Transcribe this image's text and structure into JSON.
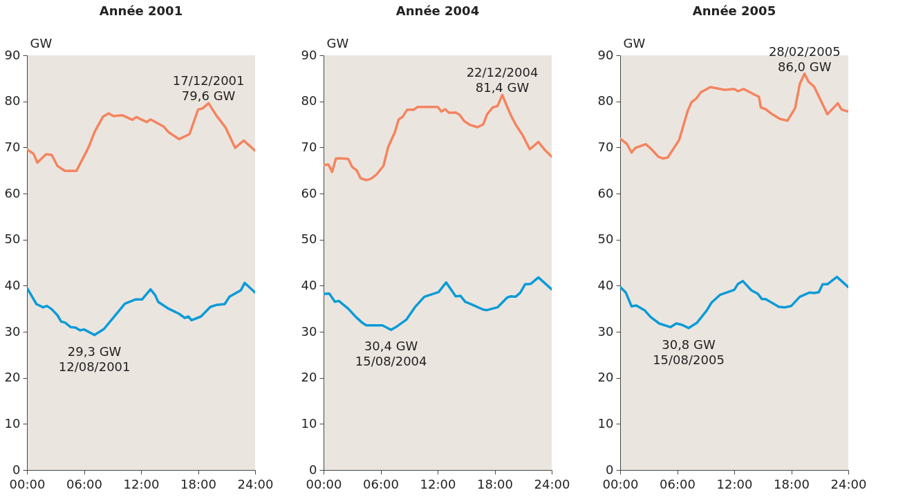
{
  "chart_data": [
    {
      "type": "line",
      "title": "Année 2001",
      "ylabel": "GW",
      "xlim": [
        0,
        24
      ],
      "ylim": [
        0,
        90
      ],
      "yticks": [
        0,
        10,
        20,
        30,
        40,
        50,
        60,
        70,
        80,
        90
      ],
      "xticks": [
        {
          "value": 0,
          "label": "00:00"
        },
        {
          "value": 6,
          "label": "06:00"
        },
        {
          "value": 12,
          "label": "12:00"
        },
        {
          "value": 18,
          "label": "18:00"
        },
        {
          "value": 24,
          "label": "24:00"
        }
      ],
      "series": [
        {
          "color": "#f4845f",
          "x": [
            0,
            0.7,
            1.1,
            2.0,
            2.6,
            3.2,
            3.7,
            4.0,
            5.2,
            6.5,
            7.1,
            8.0,
            8.6,
            9.1,
            10.0,
            11.1,
            11.5,
            12.6,
            13.0,
            14.4,
            14.9,
            16.0,
            17.1,
            18.0,
            18.5,
            19.1,
            19.9,
            20.9,
            21.9,
            22.8,
            24.0
          ],
          "values": [
            69.6,
            68.6,
            66.7,
            68.5,
            68.4,
            66.0,
            65.3,
            64.9,
            64.9,
            70.1,
            73.3,
            76.7,
            77.4,
            76.8,
            77.0,
            76.0,
            76.6,
            75.5,
            76.1,
            74.5,
            73.3,
            71.8,
            72.9,
            78.2,
            78.5,
            79.6,
            77.0,
            74.3,
            69.9,
            71.5,
            69.3
          ]
        },
        {
          "color": "#0a9bd7",
          "x": [
            0,
            1.0,
            1.7,
            2.1,
            2.6,
            3.2,
            3.6,
            4.0,
            4.6,
            5.1,
            5.6,
            6.0,
            7.1,
            8.1,
            9.1,
            10.3,
            11.4,
            12.1,
            13.0,
            13.5,
            13.8,
            14.9,
            16.0,
            16.6,
            17.0,
            17.3,
            18.3,
            19.3,
            19.9,
            20.8,
            21.3,
            22.5,
            22.9,
            24.0
          ],
          "values": [
            39.5,
            36.0,
            35.3,
            35.6,
            34.9,
            33.6,
            32.2,
            32.0,
            31.0,
            30.9,
            30.3,
            30.5,
            29.3,
            30.6,
            33.1,
            36.1,
            37.0,
            37.0,
            39.2,
            37.9,
            36.5,
            35.0,
            33.9,
            33.0,
            33.3,
            32.5,
            33.3,
            35.4,
            35.8,
            36.0,
            37.6,
            39.0,
            40.6,
            38.5
          ]
        }
      ],
      "annotations": [
        {
          "text": "17/12/2001\n79,6 GW",
          "x": 19.1,
          "y": 79.6
        },
        {
          "text": "29,3 GW\n12/08/2001",
          "x": 7.1,
          "y": 29.3
        }
      ]
    },
    {
      "type": "line",
      "title": "Année 2004",
      "ylabel": "GW",
      "xlim": [
        0,
        24
      ],
      "ylim": [
        0,
        90
      ],
      "yticks": [
        0,
        10,
        20,
        30,
        40,
        50,
        60,
        70,
        80,
        90
      ],
      "xticks": [
        {
          "value": 0,
          "label": "00:00"
        },
        {
          "value": 6,
          "label": "06:00"
        },
        {
          "value": 12,
          "label": "12:00"
        },
        {
          "value": 18,
          "label": "18:00"
        },
        {
          "value": 24,
          "label": "24:00"
        }
      ],
      "series": [
        {
          "color": "#f4845f",
          "x": [
            0,
            0.5,
            0.9,
            1.3,
            2.0,
            2.6,
            3.0,
            3.5,
            3.9,
            4.5,
            5.0,
            5.6,
            6.3,
            6.8,
            7.5,
            7.9,
            8.3,
            8.8,
            9.5,
            9.9,
            12.0,
            12.4,
            12.8,
            13.2,
            13.9,
            14.3,
            14.8,
            15.4,
            16.2,
            16.8,
            17.2,
            17.8,
            18.3,
            18.8,
            19.3,
            19.7,
            20.2,
            20.9,
            21.7,
            22.6,
            23.3,
            24.0
          ],
          "values": [
            66.2,
            66.3,
            64.7,
            67.6,
            67.6,
            67.5,
            65.8,
            65.0,
            63.3,
            62.9,
            63.2,
            64.2,
            66.0,
            70.1,
            73.3,
            76.1,
            76.6,
            78.2,
            78.2,
            78.8,
            78.8,
            77.8,
            78.3,
            77.5,
            77.6,
            77.1,
            75.7,
            74.9,
            74.4,
            75.0,
            77.2,
            78.7,
            79.0,
            81.4,
            78.9,
            77.0,
            75.0,
            72.8,
            69.6,
            71.2,
            69.4,
            68.0
          ]
        },
        {
          "color": "#0a9bd7",
          "x": [
            0,
            0.6,
            1.2,
            1.6,
            2.6,
            3.4,
            4.1,
            4.5,
            6.2,
            7.1,
            7.6,
            8.7,
            9.6,
            10.6,
            12.1,
            12.9,
            13.9,
            14.4,
            14.9,
            15.6,
            16.8,
            17.2,
            18.3,
            19.3,
            19.7,
            20.2,
            20.7,
            21.2,
            21.8,
            22.6,
            24.0
          ],
          "values": [
            38.2,
            38.3,
            36.5,
            36.7,
            35.0,
            33.2,
            31.9,
            31.4,
            31.4,
            30.4,
            31.0,
            32.6,
            35.3,
            37.6,
            38.6,
            40.7,
            37.7,
            37.8,
            36.5,
            35.9,
            34.8,
            34.7,
            35.3,
            37.4,
            37.7,
            37.6,
            38.5,
            40.3,
            40.4,
            41.8,
            39.2
          ]
        }
      ],
      "annotations": [
        {
          "text": "22/12/2004\n81,4 GW",
          "x": 18.8,
          "y": 81.4
        },
        {
          "text": "30,4 GW\n15/08/2004",
          "x": 7.1,
          "y": 30.4
        }
      ]
    },
    {
      "type": "line",
      "title": "Année 2005",
      "ylabel": "GW",
      "xlim": [
        0,
        24
      ],
      "ylim": [
        0,
        90
      ],
      "yticks": [
        0,
        10,
        20,
        30,
        40,
        50,
        60,
        70,
        80,
        90
      ],
      "xticks": [
        {
          "value": 0,
          "label": "00:00"
        },
        {
          "value": 6,
          "label": "06:00"
        },
        {
          "value": 12,
          "label": "12:00"
        },
        {
          "value": 18,
          "label": "18:00"
        },
        {
          "value": 24,
          "label": "24:00"
        }
      ],
      "series": [
        {
          "color": "#f4845f",
          "x": [
            0,
            0.7,
            1.2,
            1.6,
            2.7,
            3.3,
            4.0,
            4.5,
            5.0,
            6.2,
            7.1,
            7.5,
            8.0,
            8.5,
            9.5,
            11.0,
            12.0,
            12.4,
            13.0,
            13.9,
            14.6,
            14.8,
            15.3,
            16.0,
            16.8,
            17.6,
            18.4,
            18.9,
            19.4,
            19.8,
            20.4,
            21.8,
            22.9,
            23.3,
            24.0
          ],
          "values": [
            71.9,
            70.8,
            68.9,
            69.9,
            70.7,
            69.6,
            68.0,
            67.6,
            67.8,
            71.6,
            77.9,
            79.8,
            80.6,
            82.0,
            83.1,
            82.5,
            82.7,
            82.2,
            82.7,
            81.7,
            81.0,
            78.7,
            78.3,
            77.2,
            76.2,
            75.8,
            78.5,
            83.8,
            86.0,
            84.3,
            83.2,
            77.2,
            79.6,
            78.2,
            77.8
          ]
        },
        {
          "color": "#0a9bd7",
          "x": [
            0,
            0.6,
            1.2,
            1.7,
            2.6,
            3.2,
            4.1,
            5.3,
            5.9,
            6.5,
            7.2,
            8.1,
            9.1,
            9.6,
            10.5,
            12.0,
            12.4,
            12.9,
            13.8,
            14.5,
            14.9,
            15.3,
            16.7,
            17.3,
            18.0,
            18.9,
            19.9,
            20.4,
            20.9,
            21.3,
            21.8,
            22.8,
            24.0
          ],
          "values": [
            39.7,
            38.5,
            35.5,
            35.7,
            34.6,
            33.2,
            31.8,
            31.0,
            31.8,
            31.5,
            30.8,
            32.0,
            34.6,
            36.3,
            38.0,
            39.1,
            40.4,
            41.0,
            39.0,
            38.2,
            37.1,
            37.1,
            35.4,
            35.3,
            35.6,
            37.6,
            38.5,
            38.4,
            38.6,
            40.3,
            40.3,
            41.9,
            39.7
          ]
        }
      ],
      "annotations": [
        {
          "text": "28/02/2005\n86,0 GW",
          "x": 19.4,
          "y": 86.0
        },
        {
          "text": "30,8 GW\n15/08/2005",
          "x": 7.2,
          "y": 30.8
        }
      ]
    }
  ]
}
